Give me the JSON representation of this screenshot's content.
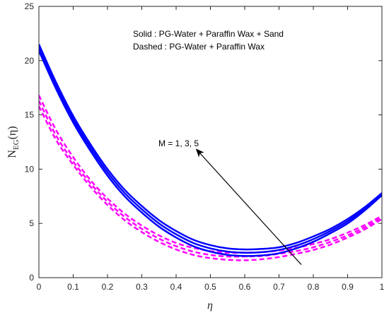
{
  "chart_data": {
    "type": "line",
    "xlabel": "η",
    "ylabel": "N",
    "ylabel_sub": "EG",
    "ylabel_tail": "(η)",
    "xlim": [
      0,
      1
    ],
    "ylim": [
      0,
      25
    ],
    "xticks": [
      0,
      0.1,
      0.2,
      0.3,
      0.4,
      0.5,
      0.6,
      0.7,
      0.8,
      0.9,
      1
    ],
    "xtick_labels": [
      "0",
      "0.1",
      "0.2",
      "0.3",
      "0.4",
      "0.5",
      "0.6",
      "0.7",
      "0.8",
      "0.9",
      "1"
    ],
    "yticks": [
      0,
      5,
      10,
      15,
      20,
      25
    ],
    "ytick_labels": [
      "0",
      "5",
      "10",
      "15",
      "20",
      "25"
    ],
    "grid": false,
    "legend_lines": [
      "Solid     : PG-Water + Paraffin Wax + Sand",
      "Dashed : PG-Water + Paraffin Wax"
    ],
    "annotation": {
      "text": "M = 1, 3, 5",
      "arrow_from": [
        0.765,
        1.2
      ],
      "arrow_to": [
        0.46,
        11.8
      ]
    },
    "colors": {
      "solid": "#0000ff",
      "dashed": "#ff00ff",
      "axis": "#262626",
      "arrow": "#000000"
    },
    "x": [
      0,
      0.05,
      0.1,
      0.15,
      0.2,
      0.25,
      0.3,
      0.35,
      0.4,
      0.45,
      0.5,
      0.55,
      0.6,
      0.65,
      0.7,
      0.75,
      0.8,
      0.85,
      0.9,
      0.95,
      1
    ],
    "series": [
      {
        "style": "solid",
        "values": [
          21.5,
          18.0,
          14.9,
          12.3,
          10.0,
          8.1,
          6.6,
          5.3,
          4.3,
          3.5,
          3.0,
          2.7,
          2.6,
          2.65,
          2.8,
          3.2,
          3.8,
          4.5,
          5.4,
          6.5,
          7.8
        ]
      },
      {
        "style": "solid",
        "values": [
          21.2,
          17.7,
          14.6,
          12.0,
          9.7,
          7.8,
          6.3,
          5.0,
          4.0,
          3.2,
          2.7,
          2.4,
          2.3,
          2.35,
          2.55,
          2.95,
          3.55,
          4.3,
          5.2,
          6.35,
          7.7
        ]
      },
      {
        "style": "solid",
        "values": [
          20.9,
          17.4,
          14.3,
          11.7,
          9.4,
          7.5,
          6.0,
          4.7,
          3.7,
          2.9,
          2.4,
          2.1,
          2.0,
          2.05,
          2.25,
          2.7,
          3.3,
          4.1,
          5.0,
          6.2,
          7.6
        ]
      },
      {
        "style": "dashed",
        "values": [
          16.8,
          13.6,
          11.1,
          9.0,
          7.3,
          5.9,
          4.8,
          3.9,
          3.2,
          2.75,
          2.45,
          2.3,
          2.3,
          2.35,
          2.5,
          2.75,
          3.1,
          3.55,
          4.15,
          4.85,
          5.7
        ]
      },
      {
        "style": "dashed",
        "values": [
          16.3,
          13.1,
          10.7,
          8.7,
          7.0,
          5.6,
          4.5,
          3.6,
          2.9,
          2.4,
          2.1,
          1.95,
          1.95,
          2.0,
          2.2,
          2.45,
          2.8,
          3.3,
          3.9,
          4.65,
          5.55
        ]
      },
      {
        "style": "dashed",
        "values": [
          15.8,
          12.7,
          10.4,
          8.4,
          6.7,
          5.3,
          4.2,
          3.3,
          2.6,
          2.1,
          1.8,
          1.65,
          1.6,
          1.7,
          1.9,
          2.2,
          2.55,
          3.05,
          3.7,
          4.45,
          5.4
        ]
      }
    ]
  }
}
